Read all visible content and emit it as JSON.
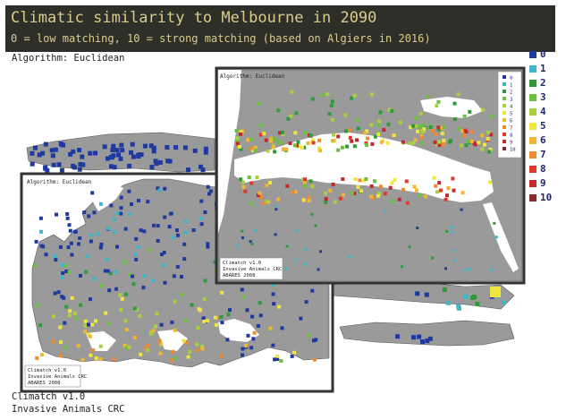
{
  "header": {
    "title": "Climatic similarity to Melbourne in 2090",
    "subtitle": "0 = low matching, 10 = strong matching (based on Algiers in 2016)"
  },
  "algorithm_label": "Algorithm: Euclidean",
  "footer": {
    "line1": "Climatch v1.0",
    "line2": "Invasive Animals CRC"
  },
  "inset_europe": {
    "algorithm_label": "Algorithm: Euclidean",
    "credit": [
      "Climatch v1.0",
      "Invasive Animals CRC",
      "ABARES 2008"
    ]
  },
  "inset_mediterranean": {
    "algorithm_label": "Algorithm: Euclidean",
    "credit": [
      "Climatch v1.0",
      "Invasive Animals CRC",
      "ABARES 2008"
    ],
    "legend": [
      "0",
      "1",
      "2",
      "3",
      "4",
      "5",
      "6",
      "7",
      "8",
      "9",
      "10"
    ]
  },
  "legend": {
    "items": [
      {
        "label": "0",
        "color": "#1f3a9e"
      },
      {
        "label": "1",
        "color": "#3fb6c8"
      },
      {
        "label": "2",
        "color": "#2e9a3a"
      },
      {
        "label": "3",
        "color": "#6cc040"
      },
      {
        "label": "4",
        "color": "#a8d23c"
      },
      {
        "label": "5",
        "color": "#f0e63c"
      },
      {
        "label": "6",
        "color": "#f2b632"
      },
      {
        "label": "7",
        "color": "#ef8a2e"
      },
      {
        "label": "8",
        "color": "#e4392a"
      },
      {
        "label": "9",
        "color": "#c42828"
      },
      {
        "label": "10",
        "color": "#8a2a2a"
      }
    ]
  }
}
